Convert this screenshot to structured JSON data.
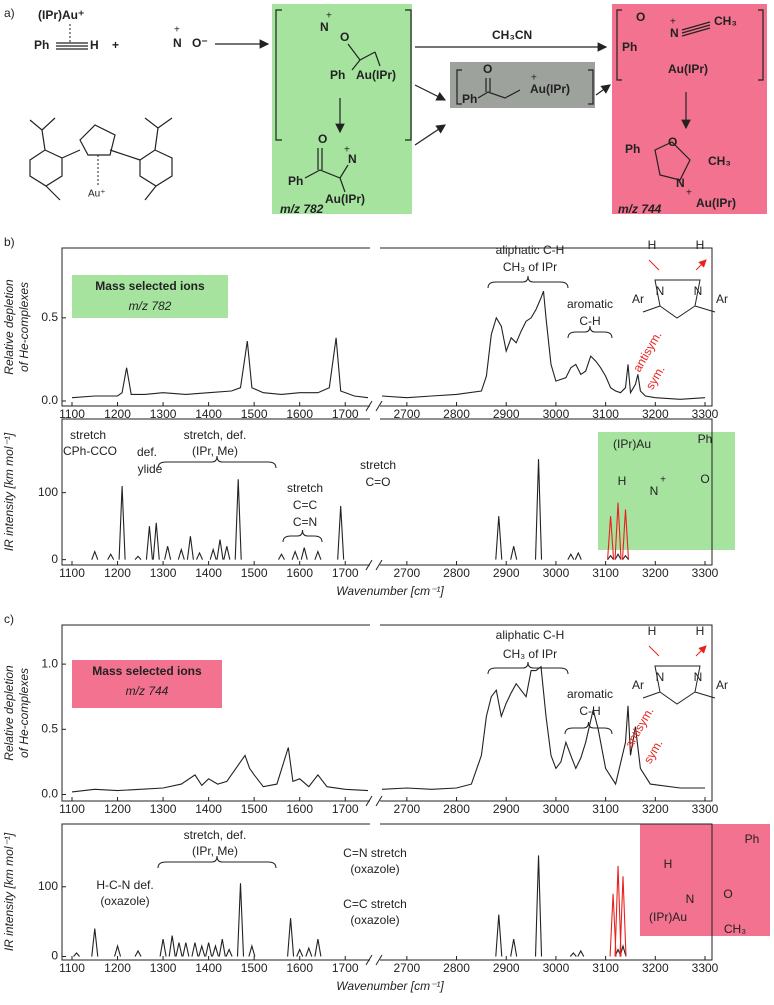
{
  "scheme": {
    "label": "a)",
    "alkyne_au": "(IPr)Au⁺",
    "alkyne_ph": "Ph",
    "alkyne_h": "H",
    "plus": "+",
    "pyr_n": "N",
    "pyr_charge": "+",
    "pyr_o": "O⁻",
    "i1_n": "N",
    "i1_charge": "+",
    "i1_o": "O",
    "i1_ph": "Ph",
    "i1_au": "Au(IPr)",
    "i2_o": "O",
    "i2_ph": "Ph",
    "i2_n": "N",
    "i2_charge": "+",
    "i2_au": "Au(IPr)",
    "i2_mz": "m/z 782",
    "reagent": "CH₃CN",
    "i3_o": "O",
    "i3_ph": "Ph",
    "i3_au": "Au(IPr)",
    "i3_charge": "+",
    "i4_o": "O",
    "i4_n": "N",
    "i4_charge": "+",
    "i4_ch3": "CH₃",
    "i4_ph": "Ph",
    "i4_au": "Au(IPr)",
    "i5_ph": "Ph",
    "i5_o": "O",
    "i5_ch3": "CH₃",
    "i5_n": "N",
    "i5_charge": "+",
    "i5_au": "Au(IPr)",
    "i5_mz": "m/z 744",
    "ligand_au": "Au⁺"
  },
  "chart_data": [
    {
      "type": "line",
      "label": "b)",
      "ylabel": [
        "Relative depletion",
        "of He-complexes"
      ],
      "xlim": [
        1100,
        3300
      ],
      "xbreak": [
        1750,
        2650
      ],
      "ylim": [
        -0.03,
        0.92
      ],
      "xticks": [
        1100,
        1200,
        1300,
        1400,
        1500,
        1600,
        1700,
        2700,
        2800,
        2900,
        3000,
        3100,
        3200,
        3300
      ],
      "yticks": [
        {
          "value": 0,
          "label": "0.0"
        },
        {
          "value": 0.5,
          "label": "0.5"
        }
      ],
      "box": {
        "title": "Mass selected ions",
        "subtitle": "m/z 782",
        "color": "#a6e39f"
      },
      "series": [
        {
          "color": "#222222",
          "x": [
            1100,
            1150,
            1200,
            1210,
            1220,
            1230,
            1260,
            1300,
            1350,
            1400,
            1450,
            1470,
            1485,
            1495,
            1520,
            1560,
            1600,
            1640,
            1665,
            1680,
            1690,
            1720,
            1750,
            2200,
            2650,
            2700,
            2750,
            2800,
            2850,
            2860,
            2870,
            2880,
            2890,
            2900,
            2910,
            2920,
            2930,
            2940,
            2950,
            2960,
            2970,
            2975,
            2980,
            2990,
            3000,
            3020,
            3030,
            3040,
            3050,
            3060,
            3070,
            3080,
            3090,
            3100,
            3110,
            3120,
            3130,
            3140,
            3145,
            3150,
            3160,
            3165,
            3170,
            3180,
            3200,
            3250,
            3300
          ],
          "values": [
            0.02,
            0.03,
            0.03,
            0.05,
            0.2,
            0.04,
            0.04,
            0.05,
            0.04,
            0.05,
            0.06,
            0.08,
            0.36,
            0.08,
            0.05,
            0.04,
            0.05,
            0.05,
            0.08,
            0.38,
            0.06,
            0.03,
            0.02,
            null,
            0.03,
            0.02,
            0.03,
            0.04,
            0.06,
            0.15,
            0.4,
            0.5,
            0.45,
            0.3,
            0.38,
            0.35,
            0.42,
            0.48,
            0.5,
            0.55,
            0.62,
            0.66,
            0.5,
            0.22,
            0.12,
            0.14,
            0.2,
            0.22,
            0.16,
            0.18,
            0.27,
            0.24,
            0.2,
            0.15,
            0.08,
            0.06,
            0.05,
            0.08,
            0.22,
            0.05,
            0.1,
            0.16,
            0.06,
            0.03,
            0.02,
            0.01,
            0.02
          ]
        }
      ],
      "annotations": [
        "aliphatic C-H",
        "CH₃ of IPr",
        "aromatic",
        "C-H",
        "antisym.",
        "sym.",
        "H",
        "H",
        "N",
        "N",
        "Ar",
        "Ar"
      ]
    },
    {
      "type": "peaks",
      "ylabel": [
        "IR intensity [km mol⁻¹]"
      ],
      "xlabel": "Wavenumber [cm⁻¹]",
      "xlim": [
        1100,
        3300
      ],
      "xbreak": [
        1750,
        2650
      ],
      "ylim": [
        -8,
        210
      ],
      "xticks": [
        1100,
        1200,
        1300,
        1400,
        1500,
        1600,
        1700,
        2700,
        2800,
        2900,
        3000,
        3100,
        3200,
        3300
      ],
      "yticks": [
        0,
        100
      ],
      "series": [
        {
          "color": "#222222",
          "x": [
            1150,
            1185,
            1210,
            1245,
            1270,
            1285,
            1310,
            1340,
            1360,
            1380,
            1410,
            1425,
            1440,
            1465,
            1560,
            1590,
            1610,
            1640,
            1690,
            2885,
            2915,
            2965,
            3030,
            3045,
            3110,
            3125,
            3140
          ],
          "values": [
            12,
            8,
            110,
            5,
            50,
            55,
            20,
            15,
            35,
            10,
            15,
            30,
            20,
            120,
            8,
            12,
            18,
            12,
            80,
            65,
            20,
            150,
            8,
            10,
            6,
            8,
            6
          ]
        },
        {
          "color": "#e8221e",
          "x": [
            3110,
            3125,
            3140
          ],
          "values": [
            65,
            85,
            75
          ]
        }
      ],
      "annotations": [
        "stretch",
        "CPh-CCO",
        "def.",
        "ylide",
        "stretch, def.",
        "(IPr, Me)",
        "stretch",
        "C=C",
        "C=N",
        "stretch",
        "C=O",
        "(IPr)Au",
        "Ph",
        "H",
        "N",
        "+",
        "O"
      ]
    },
    {
      "type": "line",
      "label": "c)",
      "ylabel": [
        "Relative depletion",
        "of He-complexes"
      ],
      "xlim": [
        1100,
        3300
      ],
      "xbreak": [
        1750,
        2650
      ],
      "ylim": [
        -0.05,
        1.3
      ],
      "xticks": [
        1100,
        1200,
        1300,
        1400,
        1500,
        1600,
        1700,
        2700,
        2800,
        2900,
        3000,
        3100,
        3200,
        3300
      ],
      "yticks": [
        {
          "value": 0,
          "label": "0.0"
        },
        {
          "value": 0.5,
          "label": "0.5"
        },
        {
          "value": 1,
          "label": "1.0"
        }
      ],
      "box": {
        "title": "Mass selected ions",
        "subtitle": "m/z 744",
        "color": "#f2728f"
      },
      "series": [
        {
          "color": "#222222",
          "x": [
            1100,
            1150,
            1200,
            1250,
            1300,
            1340,
            1370,
            1385,
            1400,
            1420,
            1440,
            1460,
            1480,
            1490,
            1500,
            1520,
            1550,
            1575,
            1585,
            1600,
            1620,
            1640,
            1660,
            1700,
            1750,
            2200,
            2650,
            2700,
            2750,
            2800,
            2830,
            2850,
            2860,
            2870,
            2880,
            2890,
            2900,
            2910,
            2920,
            2930,
            2940,
            2950,
            2960,
            2970,
            2980,
            2990,
            3000,
            3010,
            3020,
            3030,
            3040,
            3050,
            3060,
            3075,
            3085,
            3100,
            3120,
            3140,
            3145,
            3150,
            3160,
            3170,
            3190,
            3250,
            3300
          ],
          "values": [
            0.02,
            0.04,
            0.03,
            0.04,
            0.05,
            0.08,
            0.15,
            0.07,
            0.12,
            0.08,
            0.1,
            0.2,
            0.3,
            0.2,
            0.15,
            0.06,
            0.08,
            0.36,
            0.1,
            0.12,
            0.06,
            0.15,
            0.06,
            0.04,
            0.03,
            null,
            0.04,
            0.05,
            0.04,
            0.05,
            0.08,
            0.3,
            0.6,
            0.75,
            0.8,
            0.6,
            0.7,
            0.78,
            0.85,
            0.8,
            0.75,
            0.95,
            0.95,
            0.98,
            0.6,
            0.3,
            0.2,
            0.25,
            0.4,
            0.3,
            0.2,
            0.28,
            0.4,
            0.65,
            0.5,
            0.2,
            0.08,
            0.4,
            0.68,
            0.3,
            0.52,
            0.2,
            0.08,
            0.05,
            0.05
          ]
        }
      ],
      "annotations": [
        "aliphatic C-H",
        "CH₃ of IPr",
        "aromatic",
        "C-H",
        "antisym.",
        "sym.",
        "H",
        "H",
        "N",
        "N",
        "Ar",
        "Ar"
      ]
    },
    {
      "type": "peaks",
      "ylabel": [
        "IR intensity [km mol⁻¹]"
      ],
      "xlabel": "Wavenumber [cm⁻¹]",
      "xlim": [
        1100,
        3300
      ],
      "xbreak": [
        1750,
        2650
      ],
      "ylim": [
        -5,
        190
      ],
      "xticks": [
        1100,
        1200,
        1300,
        1400,
        1500,
        1600,
        1700,
        2700,
        2800,
        2900,
        3000,
        3100,
        3200,
        3300
      ],
      "yticks": [
        0,
        100
      ],
      "series": [
        {
          "color": "#222222",
          "x": [
            1110,
            1150,
            1200,
            1245,
            1300,
            1320,
            1335,
            1350,
            1370,
            1385,
            1400,
            1415,
            1430,
            1445,
            1470,
            1495,
            1580,
            1600,
            1620,
            1640,
            2885,
            2915,
            2965,
            3035,
            3050,
            3125,
            3135
          ],
          "values": [
            5,
            40,
            15,
            8,
            25,
            30,
            20,
            20,
            20,
            15,
            20,
            15,
            25,
            10,
            105,
            15,
            55,
            10,
            12,
            25,
            60,
            25,
            145,
            5,
            8,
            10,
            15
          ]
        },
        {
          "color": "#e8221e",
          "x": [
            3115,
            3125,
            3135
          ],
          "values": [
            90,
            130,
            115
          ]
        }
      ],
      "annotations": [
        "stretch, def.",
        "(IPr, Me)",
        "H-C-N def.",
        "(oxazole)",
        "C=N stretch",
        "(oxazole)",
        "C=C stretch",
        "(oxazole)",
        "H",
        "Ph",
        "N",
        "O",
        "(IPr)Au",
        "CH₃"
      ]
    }
  ]
}
